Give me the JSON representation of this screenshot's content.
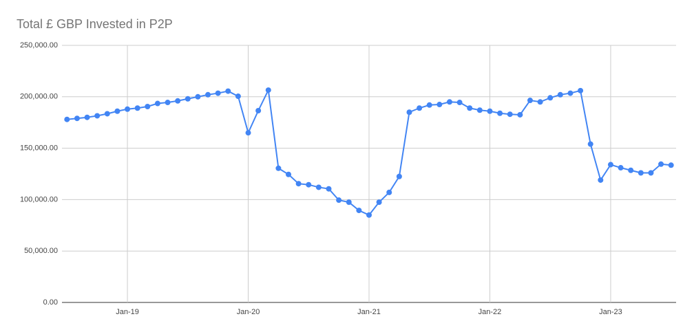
{
  "chart_data": {
    "type": "line",
    "title": "Total £ GBP Invested in P2P",
    "categories": [
      null,
      null,
      null,
      null,
      null,
      null,
      "Jan-19",
      null,
      null,
      null,
      null,
      null,
      null,
      null,
      null,
      null,
      null,
      null,
      "Jan-20",
      null,
      null,
      null,
      null,
      null,
      null,
      null,
      null,
      null,
      null,
      null,
      "Jan-21",
      null,
      null,
      null,
      null,
      null,
      null,
      null,
      null,
      null,
      null,
      null,
      "Jan-22",
      null,
      null,
      null,
      null,
      null,
      null,
      null,
      null,
      null,
      null,
      null,
      "Jan-23",
      null,
      null,
      null,
      null,
      null,
      null
    ],
    "series": [
      {
        "name": "Total £ GBP Invested",
        "color": "#4285f4",
        "values": [
          178000,
          179000,
          180000,
          181500,
          183500,
          186000,
          188000,
          189000,
          190500,
          193500,
          194500,
          196000,
          198000,
          200000,
          202000,
          203500,
          205500,
          200500,
          165000,
          186500,
          206500,
          130500,
          124500,
          115500,
          114500,
          112000,
          110500,
          99500,
          97500,
          89500,
          85000,
          97500,
          107000,
          122500,
          185000,
          189000,
          192000,
          192500,
          195000,
          194500,
          189000,
          187000,
          186000,
          184000,
          183000,
          182500,
          196500,
          195000,
          199000,
          202000,
          203500,
          206000,
          154000,
          119000,
          134000,
          131000,
          128500,
          126000,
          126000,
          134500,
          133500
        ]
      }
    ],
    "ylim": [
      0,
      250000
    ],
    "yticks": [
      {
        "value": 0,
        "label": "0.00"
      },
      {
        "value": 50000,
        "label": "50,000.00"
      },
      {
        "value": 100000,
        "label": "100,000.00"
      },
      {
        "value": 150000,
        "label": "150,000.00"
      },
      {
        "value": 200000,
        "label": "200,000.00"
      },
      {
        "value": 250000,
        "label": "250,000.00"
      }
    ],
    "grid": true
  }
}
